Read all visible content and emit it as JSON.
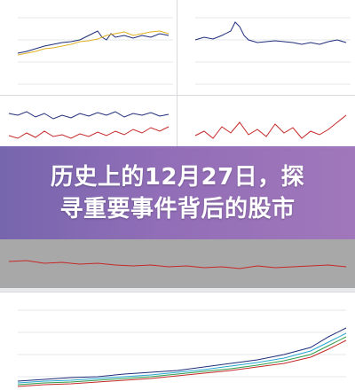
{
  "overlay": {
    "title_line1": "历史上的12月27日，探",
    "title_line2": "寻重要事件背后的股市"
  },
  "colors": {
    "navy": "#1f2d7a",
    "gold": "#e0b020",
    "red": "#c62828",
    "green": "#2e9c4a",
    "cyan": "#28a7d1",
    "overlay_purple": "#7f5fb0"
  }
}
